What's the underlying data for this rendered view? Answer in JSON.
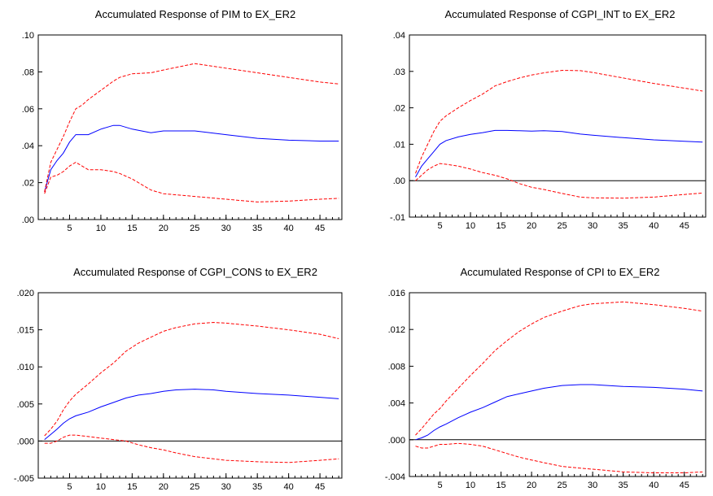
{
  "chart_data": [
    {
      "type": "line",
      "title": "Accumulated Response of PIM to EX_ER2",
      "xlabel": "",
      "ylabel": "",
      "xlim": [
        1,
        48
      ],
      "ylim": [
        0,
        0.1
      ],
      "x_ticks": [
        5,
        10,
        15,
        20,
        25,
        30,
        35,
        40,
        45
      ],
      "y_ticks": [
        0,
        0.02,
        0.04,
        0.06,
        0.08,
        0.1
      ],
      "y_tick_labels": [
        ".00",
        ".02",
        ".04",
        ".06",
        ".08",
        ".10"
      ],
      "zero_line": false,
      "x": [
        1,
        2,
        3,
        4,
        5,
        6,
        7,
        8,
        10,
        12,
        13,
        15,
        18,
        20,
        25,
        30,
        35,
        40,
        45,
        48
      ],
      "series": [
        {
          "style": "solid",
          "color": "#0000ff",
          "values": [
            0.015,
            0.027,
            0.032,
            0.036,
            0.042,
            0.046,
            0.046,
            0.046,
            0.049,
            0.051,
            0.051,
            0.049,
            0.047,
            0.048,
            0.048,
            0.046,
            0.044,
            0.043,
            0.0425,
            0.0425
          ]
        },
        {
          "style": "dashed",
          "color": "#ff0000",
          "values": [
            0.015,
            0.031,
            0.038,
            0.045,
            0.053,
            0.06,
            0.062,
            0.065,
            0.07,
            0.075,
            0.077,
            0.079,
            0.0795,
            0.081,
            0.0845,
            0.082,
            0.0795,
            0.077,
            0.0745,
            0.0735
          ]
        },
        {
          "style": "dashed",
          "color": "#ff0000",
          "values": [
            0.014,
            0.023,
            0.024,
            0.026,
            0.029,
            0.031,
            0.029,
            0.027,
            0.027,
            0.026,
            0.025,
            0.022,
            0.016,
            0.014,
            0.0125,
            0.011,
            0.0095,
            0.01,
            0.011,
            0.0115
          ]
        }
      ]
    },
    {
      "type": "line",
      "title": "Accumulated Response of CGPI_INT to EX_ER2",
      "xlabel": "",
      "ylabel": "",
      "xlim": [
        1,
        48
      ],
      "ylim": [
        -0.01,
        0.04
      ],
      "x_ticks": [
        5,
        10,
        15,
        20,
        25,
        30,
        35,
        40,
        45
      ],
      "y_ticks": [
        -0.01,
        0,
        0.01,
        0.02,
        0.03,
        0.04
      ],
      "y_tick_labels": [
        "-.01",
        ".00",
        ".01",
        ".02",
        ".03",
        ".04"
      ],
      "zero_line": true,
      "x": [
        1,
        2,
        3,
        4,
        5,
        6,
        8,
        10,
        12,
        14,
        16,
        18,
        20,
        22,
        25,
        28,
        30,
        35,
        40,
        45,
        48
      ],
      "series": [
        {
          "style": "solid",
          "color": "#0000ff",
          "values": [
            0.001,
            0.004,
            0.006,
            0.008,
            0.01,
            0.011,
            0.012,
            0.0127,
            0.0132,
            0.0138,
            0.0138,
            0.0137,
            0.0136,
            0.0137,
            0.0135,
            0.0128,
            0.0125,
            0.0118,
            0.0112,
            0.0108,
            0.0106
          ]
        },
        {
          "style": "dashed",
          "color": "#ff0000",
          "values": [
            0.002,
            0.0065,
            0.01,
            0.0135,
            0.0163,
            0.0178,
            0.02,
            0.022,
            0.0238,
            0.026,
            0.0272,
            0.0282,
            0.029,
            0.0296,
            0.0303,
            0.0302,
            0.0297,
            0.0282,
            0.0267,
            0.0254,
            0.0246
          ]
        },
        {
          "style": "dashed",
          "color": "#ff0000",
          "values": [
            0,
            0.0015,
            0.003,
            0.004,
            0.0047,
            0.0045,
            0.004,
            0.0032,
            0.0022,
            0.0015,
            0.0005,
            -0.0008,
            -0.0018,
            -0.0024,
            -0.0035,
            -0.0045,
            -0.0047,
            -0.0048,
            -0.0045,
            -0.0038,
            -0.0034
          ]
        }
      ]
    },
    {
      "type": "line",
      "title": "Accumulated Response of CGPI_CONS to EX_ER2",
      "xlabel": "",
      "ylabel": "",
      "xlim": [
        1,
        48
      ],
      "ylim": [
        -0.005,
        0.02
      ],
      "x_ticks": [
        5,
        10,
        15,
        20,
        25,
        30,
        35,
        40,
        45
      ],
      "y_ticks": [
        -0.005,
        0,
        0.005,
        0.01,
        0.015,
        0.02
      ],
      "y_tick_labels": [
        "-.005",
        ".000",
        ".005",
        ".010",
        ".015",
        ".020"
      ],
      "zero_line": true,
      "x": [
        1,
        2,
        3,
        4,
        5,
        6,
        8,
        10,
        12,
        14,
        16,
        18,
        20,
        22,
        25,
        28,
        30,
        35,
        40,
        45,
        48
      ],
      "series": [
        {
          "style": "solid",
          "color": "#0000ff",
          "values": [
            0.0002,
            0.0009,
            0.0016,
            0.0024,
            0.003,
            0.0034,
            0.0039,
            0.0046,
            0.0052,
            0.0058,
            0.0062,
            0.0064,
            0.0067,
            0.0069,
            0.007,
            0.0069,
            0.0067,
            0.0064,
            0.0062,
            0.0059,
            0.0057
          ]
        },
        {
          "style": "dashed",
          "color": "#ff0000",
          "values": [
            0.0007,
            0.0016,
            0.0027,
            0.0042,
            0.0054,
            0.0063,
            0.0077,
            0.0092,
            0.0105,
            0.0121,
            0.0132,
            0.014,
            0.0148,
            0.0153,
            0.0158,
            0.016,
            0.0159,
            0.0155,
            0.015,
            0.0144,
            0.0138
          ]
        },
        {
          "style": "dashed",
          "color": "#ff0000",
          "values": [
            -0.0003,
            -0.0003,
            0,
            0.0005,
            0.0008,
            0.0008,
            0.0006,
            0.0004,
            0.0002,
            0,
            -0.0005,
            -0.0009,
            -0.0012,
            -0.0016,
            -0.0021,
            -0.0024,
            -0.0026,
            -0.0028,
            -0.0029,
            -0.0026,
            -0.0024
          ]
        }
      ]
    },
    {
      "type": "line",
      "title": "Accumulated Response of CPI to EX_ER2",
      "xlabel": "",
      "ylabel": "",
      "xlim": [
        1,
        48
      ],
      "ylim": [
        -0.004,
        0.016
      ],
      "x_ticks": [
        5,
        10,
        15,
        20,
        25,
        30,
        35,
        40,
        45
      ],
      "y_ticks": [
        -0.004,
        0,
        0.004,
        0.008,
        0.012,
        0.016
      ],
      "y_tick_labels": [
        "-.004",
        ".000",
        ".004",
        ".008",
        ".012",
        ".016"
      ],
      "zero_line": true,
      "x": [
        1,
        2,
        3,
        4,
        5,
        6,
        8,
        10,
        12,
        14,
        16,
        18,
        20,
        22,
        25,
        28,
        30,
        35,
        40,
        45,
        48
      ],
      "series": [
        {
          "style": "solid",
          "color": "#0000ff",
          "values": [
            0,
            0.0002,
            0.0005,
            0.001,
            0.0014,
            0.0017,
            0.0024,
            0.003,
            0.0035,
            0.0041,
            0.0047,
            0.005,
            0.0053,
            0.0056,
            0.0059,
            0.006,
            0.006,
            0.0058,
            0.0057,
            0.0055,
            0.0053
          ]
        },
        {
          "style": "dashed",
          "color": "#ff0000",
          "values": [
            0.0005,
            0.0012,
            0.002,
            0.0028,
            0.0034,
            0.0042,
            0.0056,
            0.007,
            0.0083,
            0.0097,
            0.0108,
            0.0118,
            0.0126,
            0.0133,
            0.014,
            0.0146,
            0.0148,
            0.015,
            0.0147,
            0.0143,
            0.014
          ]
        },
        {
          "style": "dashed",
          "color": "#ff0000",
          "values": [
            -0.0007,
            -0.0009,
            -0.0009,
            -0.0007,
            -0.0005,
            -0.0005,
            -0.0004,
            -0.0005,
            -0.0007,
            -0.0011,
            -0.0015,
            -0.0019,
            -0.0022,
            -0.0025,
            -0.0029,
            -0.0031,
            -0.0032,
            -0.0035,
            -0.0036,
            -0.0036,
            -0.0035
          ]
        }
      ]
    }
  ]
}
